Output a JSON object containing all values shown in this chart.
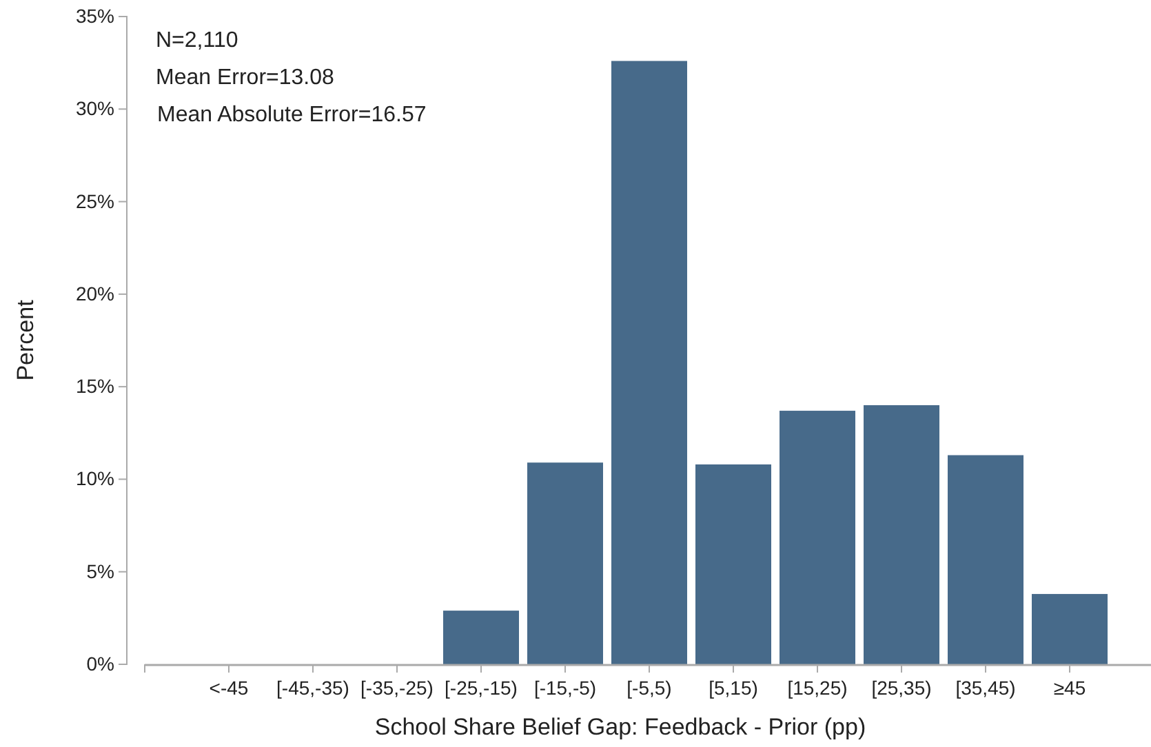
{
  "chart_data": {
    "type": "bar",
    "xlabel": "School Share Belief Gap: Feedback - Prior (pp)",
    "ylabel": "Percent",
    "categories": [
      "<-45",
      "[-45,-35)",
      "[-35,-25)",
      "[-25,-15)",
      "[-15,-5)",
      "[-5,5)",
      "[5,15)",
      "[15,25)",
      "[25,35)",
      "[35,45)",
      "≥45"
    ],
    "values": [
      0,
      0,
      0,
      2.9,
      10.9,
      32.6,
      10.8,
      13.7,
      14.0,
      11.3,
      3.8
    ],
    "color": "#476a8a",
    "ylim": [
      0,
      35
    ],
    "yticks": [
      {
        "value": 0,
        "label": "0%"
      },
      {
        "value": 5,
        "label": "5%"
      },
      {
        "value": 10,
        "label": "10%"
      },
      {
        "value": 15,
        "label": "15%"
      },
      {
        "value": 20,
        "label": "20%"
      },
      {
        "value": 25,
        "label": "25%"
      },
      {
        "value": 30,
        "label": "30%"
      },
      {
        "value": 35,
        "label": "35%"
      }
    ],
    "annotations": [
      "N=2,110",
      "Mean Error=13.08",
      "Mean Absolute Error=16.57"
    ]
  }
}
